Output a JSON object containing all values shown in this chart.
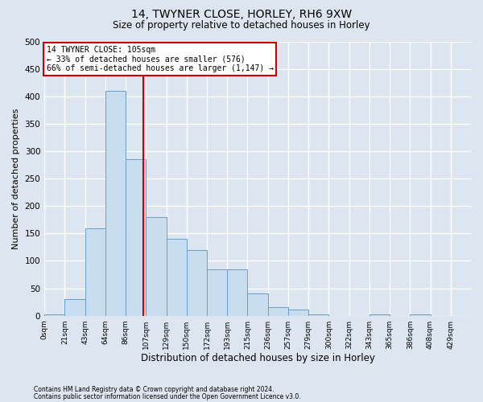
{
  "title": "14, TWYNER CLOSE, HORLEY, RH6 9XW",
  "subtitle": "Size of property relative to detached houses in Horley",
  "xlabel": "Distribution of detached houses by size in Horley",
  "ylabel": "Number of detached properties",
  "footnote1": "Contains HM Land Registry data © Crown copyright and database right 2024.",
  "footnote2": "Contains public sector information licensed under the Open Government Licence v3.0.",
  "bin_labels": [
    "0sqm",
    "21sqm",
    "43sqm",
    "64sqm",
    "86sqm",
    "107sqm",
    "129sqm",
    "150sqm",
    "172sqm",
    "193sqm",
    "215sqm",
    "236sqm",
    "257sqm",
    "279sqm",
    "300sqm",
    "322sqm",
    "343sqm",
    "365sqm",
    "386sqm",
    "408sqm",
    "429sqm"
  ],
  "bar_values": [
    2,
    30,
    160,
    410,
    285,
    180,
    140,
    120,
    85,
    85,
    40,
    15,
    12,
    2,
    0,
    0,
    3,
    0,
    2,
    0,
    0
  ],
  "bar_color": "#c9ddf0",
  "bar_edge_color": "#6a9ec8",
  "vline_value": 105,
  "vline_color": "#cc0000",
  "annotation_line1": "14 TWYNER CLOSE: 105sqm",
  "annotation_line2": "← 33% of detached houses are smaller (576)",
  "annotation_line3": "66% of semi-detached houses are larger (1,147) →",
  "annotation_box_facecolor": "white",
  "annotation_box_edgecolor": "#cc0000",
  "ylim": [
    0,
    500
  ],
  "yticks": [
    0,
    50,
    100,
    150,
    200,
    250,
    300,
    350,
    400,
    450,
    500
  ],
  "bg_color": "#dde6f0",
  "bin_width": 21.5,
  "n_bins": 21,
  "title_fontsize": 10,
  "subtitle_fontsize": 8.5,
  "ylabel_fontsize": 8,
  "xlabel_fontsize": 8.5,
  "footnote_fontsize": 5.5,
  "ytick_fontsize": 7.5,
  "xtick_fontsize": 6.5
}
